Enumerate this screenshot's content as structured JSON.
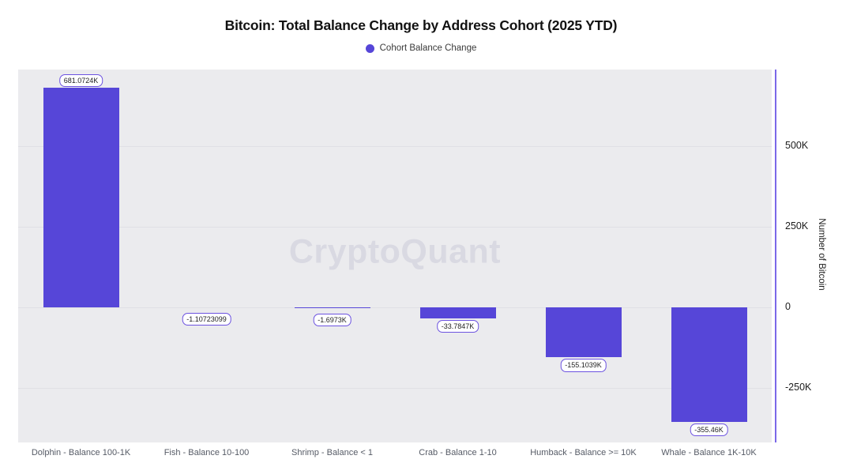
{
  "chart": {
    "title": "Bitcoin: Total Balance Change by Address Cohort (2025 YTD)",
    "legend_label": "Cohort Balance Change",
    "watermark": "CryptoQuant",
    "ylabel": "Number of Bitcoin"
  },
  "chart_data": {
    "type": "bar",
    "title": "Bitcoin: Total Balance Change by Address Cohort (2025 YTD)",
    "legend": [
      "Cohort Balance Change"
    ],
    "legend_position": "top",
    "xlabel": "",
    "ylabel": "Number of Bitcoin",
    "categories": [
      "Dolphin - Balance 100-1K",
      "Fish - Balance 10-100",
      "Shrimp - Balance < 1",
      "Crab - Balance 1-10",
      "Humback - Balance >= 10K",
      "Whale - Balance 1K-10K"
    ],
    "values": [
      681072.4,
      -1.10723099,
      -1697.3,
      -33784.7,
      -155103.9,
      -355460
    ],
    "value_labels": [
      "681.0724K",
      "-1.10723099",
      "-1.6973K",
      "-33.7847K",
      "-155.1039K",
      "-355.46K"
    ],
    "y_ticks": [
      {
        "label": "500K",
        "value": 500000
      },
      {
        "label": "250K",
        "value": 250000
      },
      {
        "label": "0",
        "value": 0
      },
      {
        "label": "-250K",
        "value": -250000
      }
    ],
    "ylim": [
      -400000,
      740000
    ],
    "grid": true
  },
  "colors": {
    "bar": "#5646d8",
    "axis_line": "#7b68e8",
    "label_box_border": "#6c52e0",
    "plot_bg": "#ebebee",
    "gridline": "#e0e0e5",
    "watermark": "#d9d9e2"
  }
}
